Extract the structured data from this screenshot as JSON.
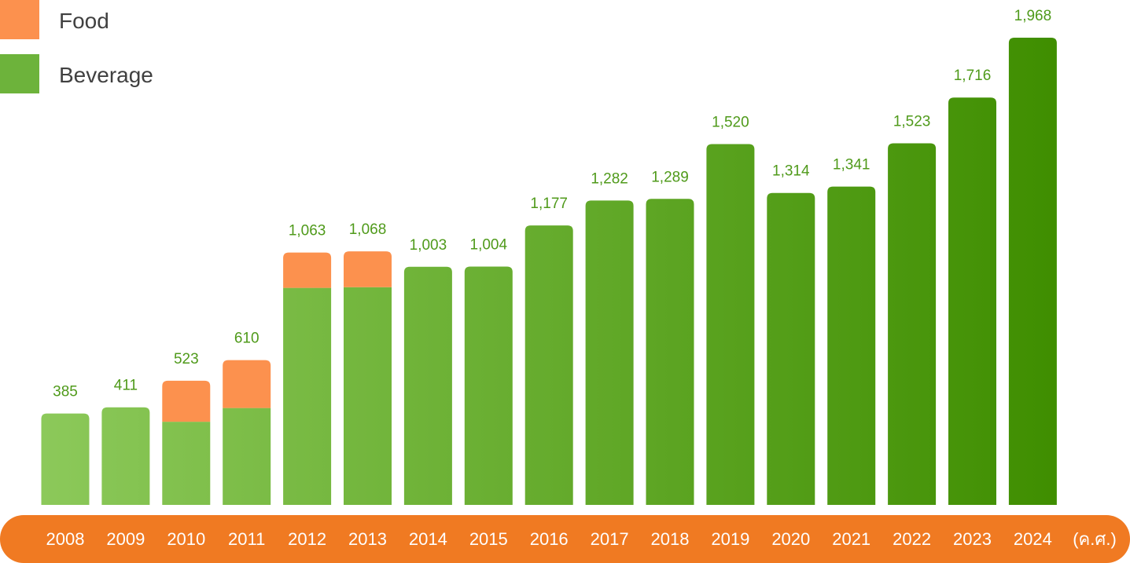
{
  "colors": {
    "food": "#fc914e",
    "beverage_light": "#8cc95a",
    "beverage_dark": "#3f8e00",
    "axis_band": "#f07a22",
    "value_label": "#4f9a1a",
    "legend_text": "#404040"
  },
  "legend": {
    "position": "top-left",
    "items": [
      {
        "key": "food",
        "label": "Food"
      },
      {
        "key": "beverage",
        "label": "Beverage"
      }
    ]
  },
  "x_axis_unit": "(ค.ศ.)",
  "chart_data": {
    "type": "bar",
    "stacked": true,
    "categories": [
      "2008",
      "2009",
      "2010",
      "2011",
      "2012",
      "2013",
      "2014",
      "2015",
      "2016",
      "2017",
      "2018",
      "2019",
      "2020",
      "2021",
      "2022",
      "2023",
      "2024"
    ],
    "totals_labels": [
      "385",
      "411",
      "523",
      "610",
      "1,063",
      "1,068",
      "1,003",
      "1,004",
      "1,177",
      "1,282",
      "1,289",
      "1,520",
      "1,314",
      "1,341",
      "1,523",
      "1,716",
      "1,968"
    ],
    "series": [
      {
        "name": "Beverage",
        "values": [
          385,
          411,
          350,
          408,
          914,
          917,
          1003,
          1004,
          1177,
          1282,
          1289,
          1520,
          1314,
          1341,
          1523,
          1716,
          1968
        ]
      },
      {
        "name": "Food",
        "values": [
          0,
          0,
          173,
          202,
          149,
          151,
          0,
          0,
          0,
          0,
          0,
          0,
          0,
          0,
          0,
          0,
          0
        ]
      }
    ],
    "totals": [
      385,
      411,
      523,
      610,
      1063,
      1068,
      1003,
      1004,
      1177,
      1282,
      1289,
      1520,
      1314,
      1341,
      1523,
      1716,
      1968
    ],
    "ylim": [
      0,
      1968
    ],
    "grid": false,
    "title": "",
    "xlabel": "(ค.ศ.)",
    "ylabel": ""
  }
}
